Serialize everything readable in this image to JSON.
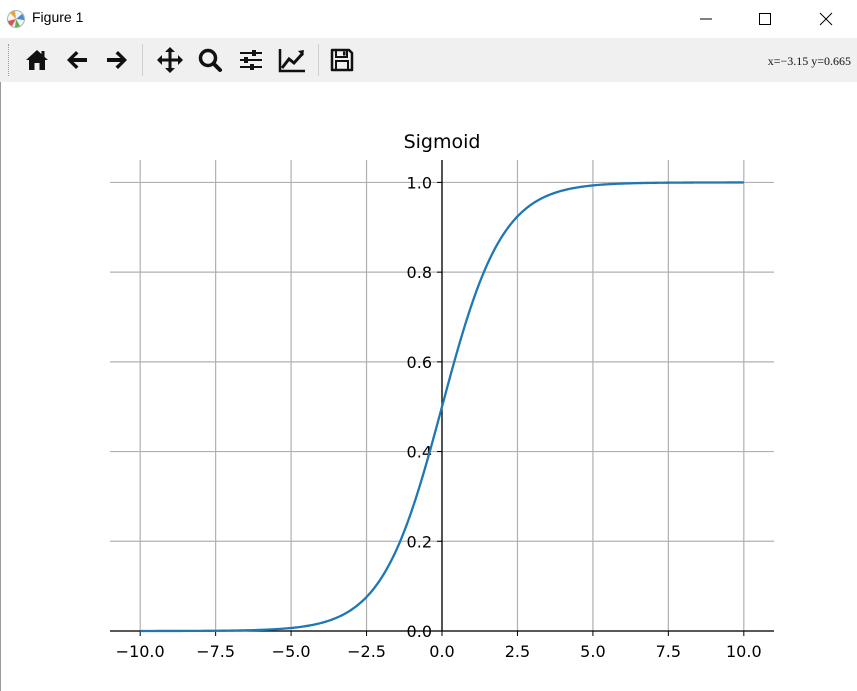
{
  "window": {
    "title": "Figure 1",
    "controls": [
      "minimize",
      "maximize",
      "close"
    ]
  },
  "toolbar": {
    "tools": [
      {
        "name": "home-icon"
      },
      {
        "name": "back-arrow-icon"
      },
      {
        "name": "forward-arrow-icon"
      },
      {
        "name": "pan-icon"
      },
      {
        "name": "zoom-icon"
      },
      {
        "name": "subplots-icon"
      },
      {
        "name": "edit-axis-icon"
      },
      {
        "name": "save-icon"
      }
    ],
    "coordinates": "x=−3.15  y=0.665"
  },
  "colors": {
    "line": "#1f77b4",
    "grid": "#b0b0b0",
    "toolbar_bg": "#f0f0f0"
  },
  "chart_data": {
    "type": "line",
    "title": "Sigmoid",
    "function": "1 / (1 + exp(-x))",
    "xlabel": "",
    "ylabel": "",
    "xlim": [
      -11,
      11
    ],
    "ylim": [
      0,
      1.05
    ],
    "grid": true,
    "spines": "centered at x=0, y=0",
    "xticks": [
      -10.0,
      -7.5,
      -5.0,
      -2.5,
      0.0,
      2.5,
      5.0,
      7.5,
      10.0
    ],
    "xtick_labels": [
      "−10.0",
      "−7.5",
      "−5.0",
      "−2.5",
      "0.0",
      "2.5",
      "5.0",
      "7.5",
      "10.0"
    ],
    "yticks": [
      0.0,
      0.2,
      0.4,
      0.6,
      0.8,
      1.0
    ],
    "ytick_labels": [
      "0.0",
      "0.2",
      "0.4",
      "0.6",
      "0.8",
      "1.0"
    ],
    "series": [
      {
        "name": "sigmoid",
        "x": [
          -10,
          -7.5,
          -5,
          -4,
          -3,
          -2.5,
          -2,
          -1.5,
          -1,
          -0.5,
          0,
          0.5,
          1,
          1.5,
          2,
          2.5,
          3,
          4,
          5,
          7.5,
          10
        ],
        "y": [
          5e-05,
          0.00055,
          0.0067,
          0.018,
          0.047,
          0.076,
          0.119,
          0.182,
          0.269,
          0.378,
          0.5,
          0.622,
          0.731,
          0.818,
          0.881,
          0.924,
          0.953,
          0.982,
          0.9933,
          0.99945,
          0.99995
        ]
      }
    ]
  }
}
